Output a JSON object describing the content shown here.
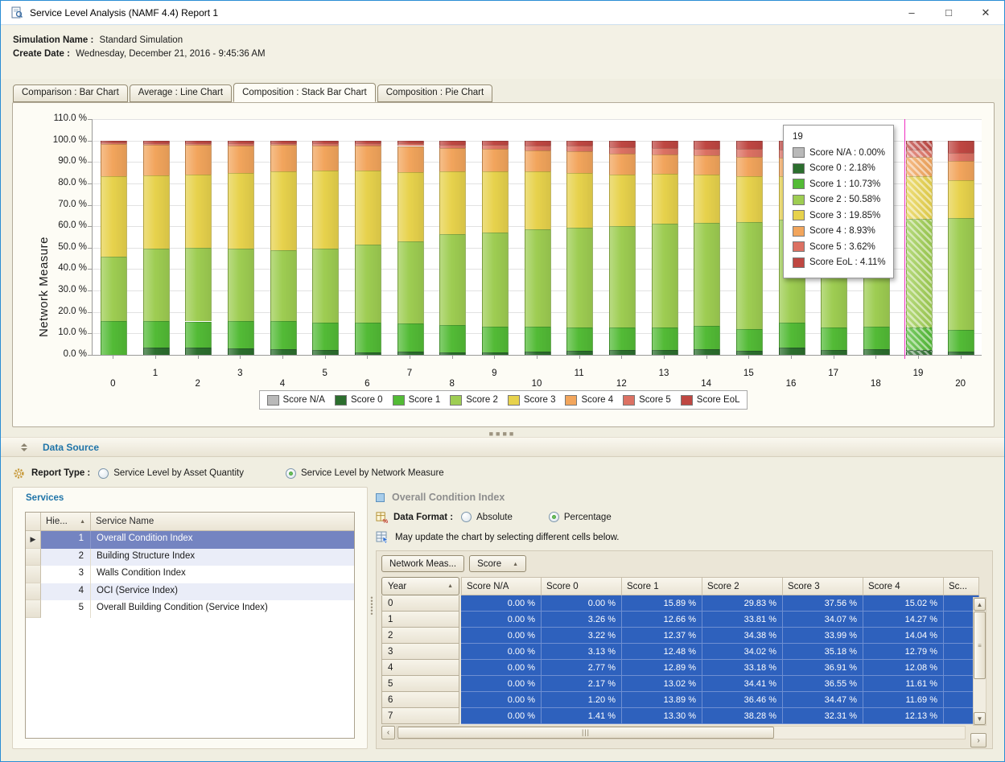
{
  "window": {
    "title": "Service Level Analysis (NAMF 4.4) Report 1"
  },
  "header": {
    "simulation_name_label": "Simulation Name :",
    "simulation_name": "Standard Simulation",
    "create_date_label": "Create Date :",
    "create_date": "Wednesday, December 21, 2016 - 9:45:36 AM"
  },
  "tabs": [
    {
      "label": "Comparison : Bar Chart",
      "active": false
    },
    {
      "label": "Average : Line Chart",
      "active": false
    },
    {
      "label": "Composition : Stack Bar Chart",
      "active": true
    },
    {
      "label": "Composition : Pie Chart",
      "active": false
    }
  ],
  "chart_data": {
    "type": "bar",
    "stacked": true,
    "title": "",
    "xlabel": "",
    "ylabel": "Network Measure",
    "ylim": [
      0,
      110
    ],
    "ytick_step": 10,
    "ytick_suffix": " %",
    "grid": true,
    "legend_position": "bottom",
    "highlighted_bar": 19,
    "categories": [
      "0",
      "1",
      "2",
      "3",
      "4",
      "5",
      "6",
      "7",
      "8",
      "9",
      "10",
      "11",
      "12",
      "13",
      "14",
      "15",
      "16",
      "17",
      "18",
      "19",
      "20"
    ],
    "series": [
      {
        "name": "Score N/A",
        "color": "#b9b9b9",
        "values": [
          0,
          0,
          0,
          0,
          0,
          0,
          0,
          0,
          0,
          0,
          0,
          0,
          0,
          0,
          0,
          0,
          0,
          0,
          0,
          0,
          0
        ]
      },
      {
        "name": "Score 0",
        "color": "#2c6e2e",
        "values": [
          0.0,
          3.26,
          3.22,
          3.13,
          2.77,
          2.17,
          1.2,
          1.41,
          1.0,
          1.2,
          1.5,
          1.8,
          2.2,
          2.3,
          2.5,
          2.0,
          3.5,
          2.2,
          2.5,
          2.18,
          1.5
        ]
      },
      {
        "name": "Score 1",
        "color": "#53bb36",
        "values": [
          15.89,
          12.66,
          12.37,
          12.48,
          12.89,
          13.02,
          13.89,
          13.3,
          13.0,
          12.0,
          11.5,
          11.0,
          10.5,
          10.5,
          11.0,
          10.0,
          11.5,
          10.5,
          10.5,
          10.73,
          10.0
        ]
      },
      {
        "name": "Score 2",
        "color": "#9ecd52",
        "values": [
          29.83,
          33.81,
          34.38,
          34.02,
          33.18,
          34.41,
          36.46,
          38.28,
          42.5,
          44.0,
          45.5,
          46.5,
          47.5,
          48.5,
          48.0,
          50.0,
          48.0,
          51.0,
          51.0,
          50.58,
          52.5
        ]
      },
      {
        "name": "Score 3",
        "color": "#e7d24c",
        "values": [
          37.56,
          34.07,
          33.99,
          35.18,
          36.91,
          36.55,
          34.47,
          32.31,
          29.0,
          28.5,
          27.0,
          25.5,
          24.0,
          23.0,
          22.5,
          21.5,
          20.5,
          20.0,
          20.0,
          19.85,
          17.5
        ]
      },
      {
        "name": "Score 4",
        "color": "#f2a55c",
        "values": [
          15.02,
          14.27,
          14.04,
          12.79,
          12.08,
          11.61,
          11.69,
          12.13,
          11.0,
          10.5,
          10.0,
          10.2,
          9.8,
          9.2,
          9.0,
          9.0,
          8.5,
          8.8,
          8.5,
          8.93,
          9.0
        ]
      },
      {
        "name": "Score 5",
        "color": "#dc7163",
        "values": [
          0.7,
          0.83,
          0.9,
          1.1,
          1.0,
          1.04,
          1.0,
          1.17,
          1.5,
          1.8,
          2.2,
          2.5,
          2.8,
          3.0,
          3.3,
          3.5,
          3.8,
          3.5,
          3.5,
          3.62,
          3.7
        ]
      },
      {
        "name": "Score EoL",
        "color": "#bf4742",
        "values": [
          1.0,
          1.1,
          1.1,
          1.3,
          1.17,
          1.2,
          1.29,
          1.4,
          2.0,
          2.0,
          2.3,
          2.5,
          3.2,
          3.5,
          3.7,
          4.0,
          4.2,
          4.0,
          4.0,
          4.11,
          5.8
        ]
      }
    ]
  },
  "chart_tooltip": {
    "title": "19",
    "rows": [
      {
        "label": "Score N/A",
        "value": "0.00%"
      },
      {
        "label": "Score 0",
        "value": "2.18%"
      },
      {
        "label": "Score 1",
        "value": "10.73%"
      },
      {
        "label": "Score 2",
        "value": "50.58%"
      },
      {
        "label": "Score 3",
        "value": "19.85%"
      },
      {
        "label": "Score 4",
        "value": "8.93%"
      },
      {
        "label": "Score 5",
        "value": "3.62%"
      },
      {
        "label": "Score EoL",
        "value": "4.11%"
      }
    ]
  },
  "data_source": {
    "title": "Data Source",
    "report_type_label": "Report Type :",
    "options": [
      {
        "label": "Service Level by Asset Quantity",
        "selected": false
      },
      {
        "label": "Service Level by Network Measure",
        "selected": true
      }
    ]
  },
  "services": {
    "title": "Services",
    "columns": {
      "hierarchy": "Hie...",
      "name": "Service Name"
    },
    "rows": [
      {
        "hierarchy": "1",
        "name": "Overall Condition Index",
        "selected": true
      },
      {
        "hierarchy": "2",
        "name": "Building Structure Index",
        "selected": false
      },
      {
        "hierarchy": "3",
        "name": "Walls Condition Index",
        "selected": false
      },
      {
        "hierarchy": "4",
        "name": "OCI (Service Index)",
        "selected": false
      },
      {
        "hierarchy": "5",
        "name": "Overall Building Condition (Service Index)",
        "selected": false
      }
    ]
  },
  "detail": {
    "title": "Overall Condition Index",
    "data_format_label": "Data Format :",
    "format_options": [
      {
        "label": "Absolute",
        "selected": false
      },
      {
        "label": "Percentage",
        "selected": true
      }
    ],
    "hint": "May update the chart by selecting different cells below.",
    "group_buttons": {
      "first": "Network Meas...",
      "second": "Score"
    },
    "row_axis_label": "Year",
    "columns": [
      "Score N/A",
      "Score 0",
      "Score 1",
      "Score 2",
      "Score 3",
      "Score 4",
      "Sc..."
    ],
    "rows": [
      {
        "year": "0",
        "values": [
          "0.00 %",
          "0.00 %",
          "15.89 %",
          "29.83 %",
          "37.56 %",
          "15.02 %",
          ""
        ]
      },
      {
        "year": "1",
        "values": [
          "0.00 %",
          "3.26 %",
          "12.66 %",
          "33.81 %",
          "34.07 %",
          "14.27 %",
          ""
        ]
      },
      {
        "year": "2",
        "values": [
          "0.00 %",
          "3.22 %",
          "12.37 %",
          "34.38 %",
          "33.99 %",
          "14.04 %",
          ""
        ]
      },
      {
        "year": "3",
        "values": [
          "0.00 %",
          "3.13 %",
          "12.48 %",
          "34.02 %",
          "35.18 %",
          "12.79 %",
          ""
        ]
      },
      {
        "year": "4",
        "values": [
          "0.00 %",
          "2.77 %",
          "12.89 %",
          "33.18 %",
          "36.91 %",
          "12.08 %",
          ""
        ]
      },
      {
        "year": "5",
        "values": [
          "0.00 %",
          "2.17 %",
          "13.02 %",
          "34.41 %",
          "36.55 %",
          "11.61 %",
          ""
        ]
      },
      {
        "year": "6",
        "values": [
          "0.00 %",
          "1.20 %",
          "13.89 %",
          "36.46 %",
          "34.47 %",
          "11.69 %",
          ""
        ]
      },
      {
        "year": "7",
        "values": [
          "0.00 %",
          "1.41 %",
          "13.30 %",
          "38.28 %",
          "32.31 %",
          "12.13 %",
          ""
        ]
      }
    ]
  }
}
